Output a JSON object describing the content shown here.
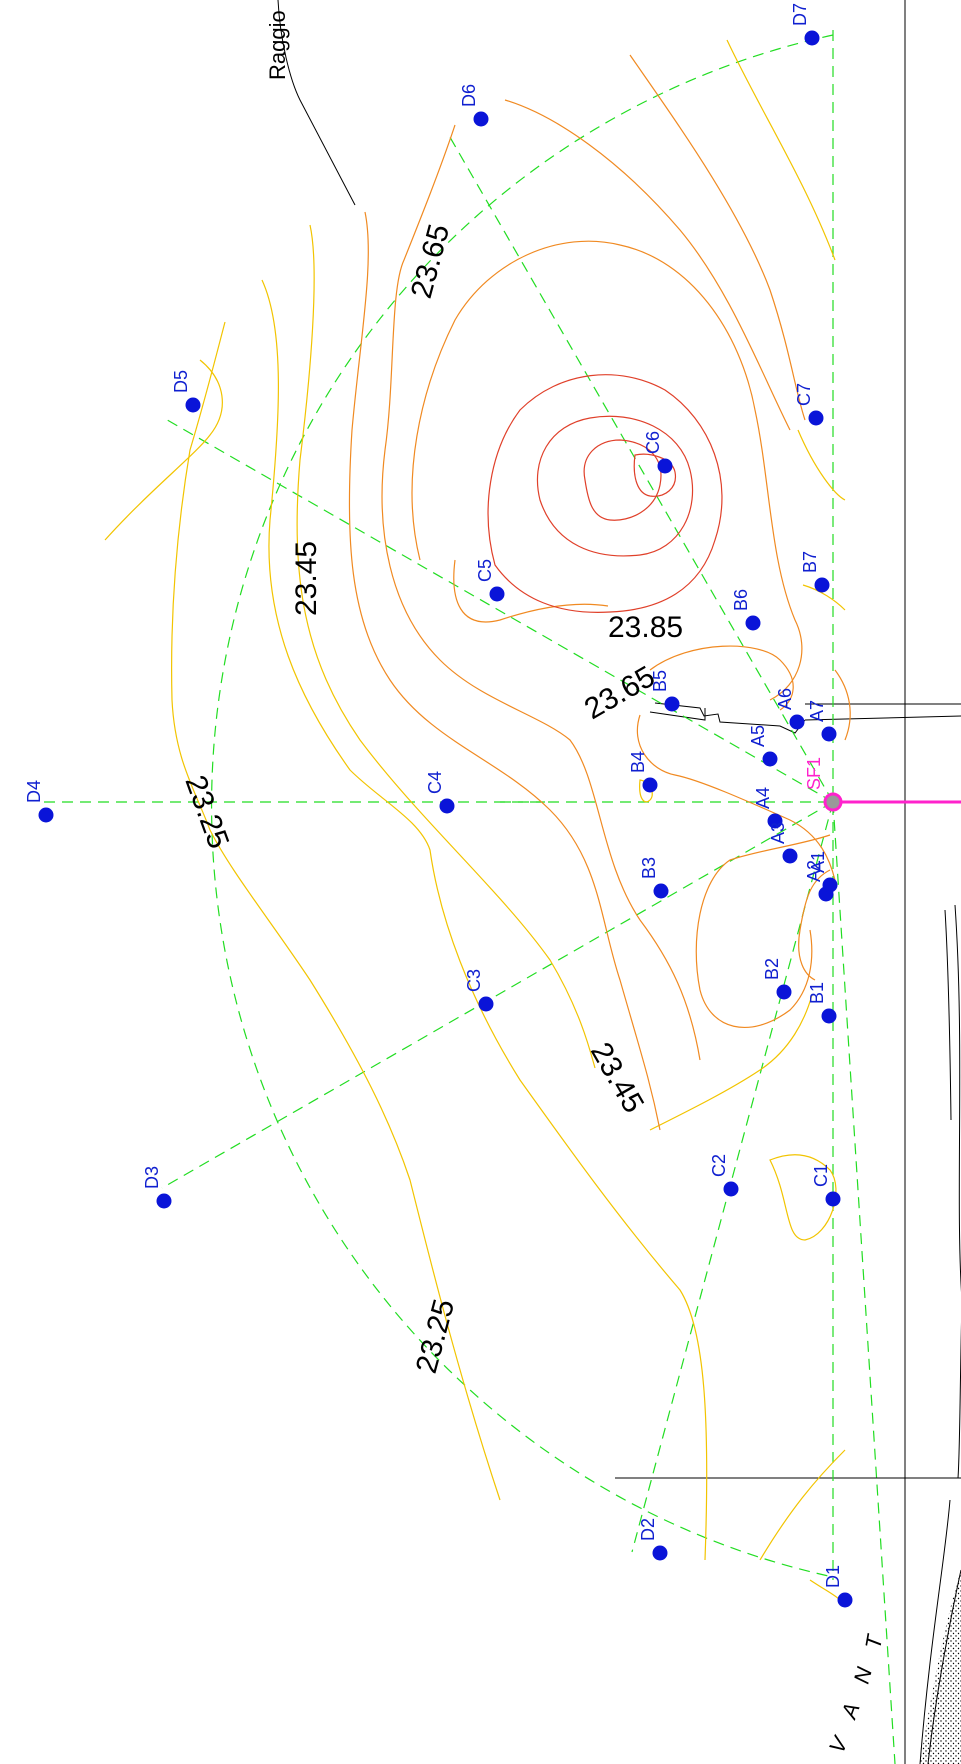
{
  "annotation": {
    "callout_text": "Raggio"
  },
  "contour_labels": [
    {
      "id": "c2365a",
      "text": "23.65"
    },
    {
      "id": "c2345a",
      "text": "23.45"
    },
    {
      "id": "c2325a",
      "text": "23.25"
    },
    {
      "id": "c2385",
      "text": "23.85"
    },
    {
      "id": "c2365b",
      "text": "23.65"
    },
    {
      "id": "c2345b",
      "text": "23.45"
    },
    {
      "id": "c2325b",
      "text": "23.25"
    }
  ],
  "points": [
    {
      "id": "D7",
      "label": "D7"
    },
    {
      "id": "D6",
      "label": "D6"
    },
    {
      "id": "D5",
      "label": "D5"
    },
    {
      "id": "C7",
      "label": "C7"
    },
    {
      "id": "C6",
      "label": "C6"
    },
    {
      "id": "C5",
      "label": "C5"
    },
    {
      "id": "B7",
      "label": "B7"
    },
    {
      "id": "B6",
      "label": "B6"
    },
    {
      "id": "B5",
      "label": "B5"
    },
    {
      "id": "A6",
      "label": "A6"
    },
    {
      "id": "A7",
      "label": "A7"
    },
    {
      "id": "A5",
      "label": "A5"
    },
    {
      "id": "B4",
      "label": "B4"
    },
    {
      "id": "D4",
      "label": "D4"
    },
    {
      "id": "C4",
      "label": "C4"
    },
    {
      "id": "A4",
      "label": "A4"
    },
    {
      "id": "A3",
      "label": "A3"
    },
    {
      "id": "A2",
      "label": "A2"
    },
    {
      "id": "A1",
      "label": "A1"
    },
    {
      "id": "B3",
      "label": "B3"
    },
    {
      "id": "C3",
      "label": "C3"
    },
    {
      "id": "B2",
      "label": "B2"
    },
    {
      "id": "B1",
      "label": "B1"
    },
    {
      "id": "D3",
      "label": "D3"
    },
    {
      "id": "C2",
      "label": "C2"
    },
    {
      "id": "C1",
      "label": "C1"
    },
    {
      "id": "D2",
      "label": "D2"
    },
    {
      "id": "D1",
      "label": "D1"
    }
  ],
  "source_point": {
    "label": "SF1"
  },
  "bottom_text": {
    "letters": [
      "T",
      "N",
      "A",
      "V"
    ]
  },
  "colors": {
    "grid_lines": "#22dd22",
    "point_fill": "#0a14d8",
    "point_label": "#1020d0",
    "source": "#ff22cc",
    "contour_low": "#f2c400",
    "contour_mid": "#f08a22",
    "contour_high": "#e0402a",
    "label_text": "#000000"
  }
}
